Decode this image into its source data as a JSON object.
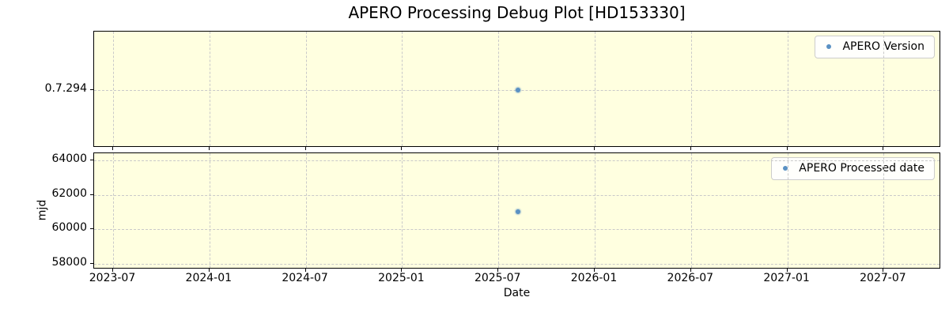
{
  "title": "APERO Processing Debug Plot [HD153330]",
  "colors": {
    "plot_background": "#ffffe0",
    "grid": "#c9c9c9",
    "marker": "#5a91c3",
    "spine": "#000000",
    "legend_border": "#cccccc"
  },
  "x_axis": {
    "label": "Date",
    "tick_labels": [
      "2023-07",
      "2024-01",
      "2024-07",
      "2025-01",
      "2025-07",
      "2026-01",
      "2026-07",
      "2027-01",
      "2027-07"
    ],
    "range": [
      "2023-06",
      "2027-10"
    ]
  },
  "chart_data": [
    {
      "type": "scatter",
      "name": "apero-version",
      "legend": "APERO Version",
      "legend_position": "upper right",
      "grid": true,
      "y_axis_type": "category",
      "y_ticks": [
        "0.7.294"
      ],
      "points": [
        {
          "date": "2025-08-08",
          "value": "0.7.294"
        }
      ]
    },
    {
      "type": "scatter",
      "name": "apero-processed-date",
      "legend": "APERO Processed date",
      "legend_position": "upper right",
      "grid": true,
      "ylabel": "mjd",
      "y_ticks": [
        58000,
        60000,
        62000,
        64000
      ],
      "ylim": [
        57670,
        64410
      ],
      "points": [
        {
          "date": "2025-08-08",
          "value": 61000
        }
      ]
    }
  ]
}
